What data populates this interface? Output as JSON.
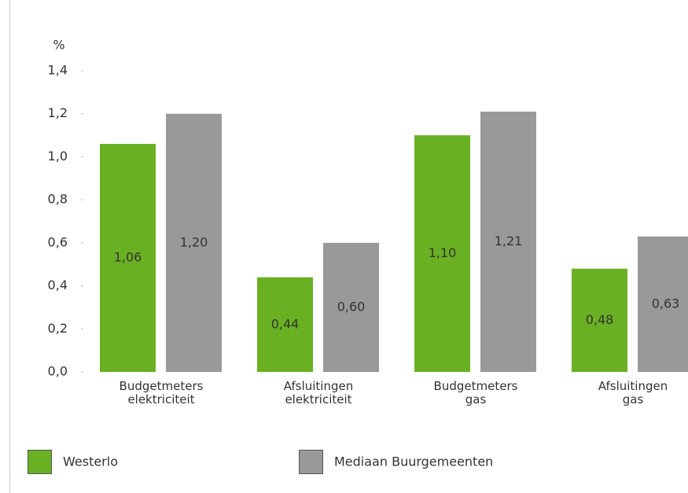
{
  "chart_data": {
    "type": "bar",
    "y_label": "%",
    "categories": [
      "Budgetmeters\nelektriciteit",
      "Afsluitingen\nelektriciteit",
      "Budgetmeters\ngas",
      "Afsluitingen\ngas"
    ],
    "series": [
      {
        "name": "Westerlo",
        "color": "#6ab023",
        "values": [
          1.06,
          0.44,
          1.1,
          0.48
        ],
        "value_labels": [
          "1,06",
          "0,44",
          "1,10",
          "0,48"
        ]
      },
      {
        "name": "Mediaan Buurgemeenten",
        "color": "#999999",
        "values": [
          1.2,
          0.6,
          1.21,
          0.63
        ],
        "value_labels": [
          "1,20",
          "0,60",
          "1,21",
          "0,63"
        ]
      }
    ],
    "ylim": [
      0,
      1.4
    ],
    "yticks": [
      {
        "value": 0,
        "label": "0,0"
      },
      {
        "value": 0.2,
        "label": "0,2"
      },
      {
        "value": 0.4,
        "label": "0,4"
      },
      {
        "value": 0.6,
        "label": "0,6"
      },
      {
        "value": 0.8,
        "label": "0,8"
      },
      {
        "value": 1.0,
        "label": "1,0"
      },
      {
        "value": 1.2,
        "label": "1,2"
      },
      {
        "value": 1.4,
        "label": "1,4"
      }
    ],
    "grid": false,
    "legend": "bottom"
  }
}
